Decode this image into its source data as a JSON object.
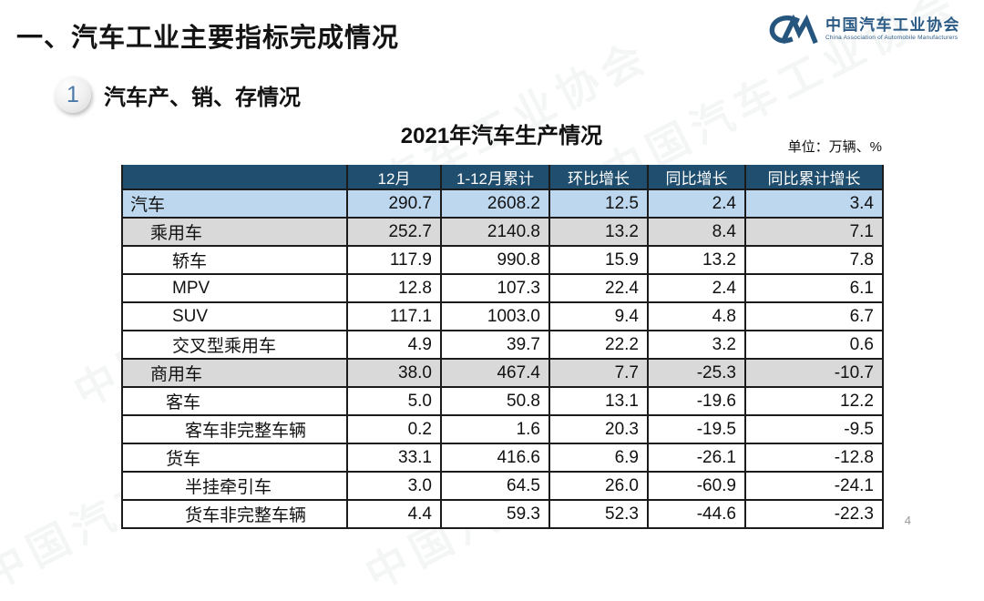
{
  "page": {
    "title": "一、汽车工业主要指标完成情况",
    "page_number": "4"
  },
  "logo": {
    "name_cn": "中国汽车工业协会",
    "name_en": "China Association of Automobile Manufacturers"
  },
  "section": {
    "number": "1",
    "title": "汽车产、销、存情况"
  },
  "table": {
    "title": "2021年汽车生产情况",
    "unit_label": "单位：万辆、%",
    "columns": [
      "",
      "12月",
      "1-12月累计",
      "环比增长",
      "同比增长",
      "同比累计增长"
    ],
    "rows": [
      {
        "label": "汽车",
        "indent": 0,
        "variant": "highlight-blue",
        "values": [
          "290.7",
          "2608.2",
          "12.5",
          "2.4",
          "3.4"
        ]
      },
      {
        "label": "乘用车",
        "indent": 1,
        "variant": "highlight-gray",
        "values": [
          "252.7",
          "2140.8",
          "13.2",
          "8.4",
          "7.1"
        ]
      },
      {
        "label": "轿车",
        "indent": 3,
        "variant": "plain",
        "values": [
          "117.9",
          "990.8",
          "15.9",
          "13.2",
          "7.8"
        ]
      },
      {
        "label": "MPV",
        "indent": 3,
        "variant": "plain",
        "values": [
          "12.8",
          "107.3",
          "22.4",
          "2.4",
          "6.1"
        ]
      },
      {
        "label": "SUV",
        "indent": 3,
        "variant": "plain",
        "values": [
          "117.1",
          "1003.0",
          "9.4",
          "4.8",
          "6.7"
        ]
      },
      {
        "label": "交叉型乘用车",
        "indent": 3,
        "variant": "plain",
        "values": [
          "4.9",
          "39.7",
          "22.2",
          "3.2",
          "0.6"
        ]
      },
      {
        "label": "商用车",
        "indent": 1,
        "variant": "highlight-gray",
        "values": [
          "38.0",
          "467.4",
          "7.7",
          "-25.3",
          "-10.7"
        ]
      },
      {
        "label": "客车",
        "indent": 2,
        "variant": "plain",
        "values": [
          "5.0",
          "50.8",
          "13.1",
          "-19.6",
          "12.2"
        ]
      },
      {
        "label": "客车非完整车辆",
        "indent": 4,
        "variant": "plain",
        "values": [
          "0.2",
          "1.6",
          "20.3",
          "-19.5",
          "-9.5"
        ]
      },
      {
        "label": "货车",
        "indent": 2,
        "variant": "plain",
        "values": [
          "33.1",
          "416.6",
          "6.9",
          "-26.1",
          "-12.8"
        ]
      },
      {
        "label": "半挂牵引车",
        "indent": 4,
        "variant": "plain",
        "values": [
          "3.0",
          "64.5",
          "26.0",
          "-60.9",
          "-24.1"
        ]
      },
      {
        "label": "货车非完整车辆",
        "indent": 4,
        "variant": "plain",
        "values": [
          "4.4",
          "59.3",
          "52.3",
          "-44.6",
          "-22.3"
        ]
      }
    ]
  },
  "watermark": {
    "text": "中国汽车工业协会"
  },
  "colors": {
    "header_bg": "#1F4E6E",
    "row_blue": "#BDD7EE",
    "row_gray": "#D9D9D9",
    "logo_blue": "#2B5A85",
    "section_number_blue": "#4A7AA8"
  }
}
